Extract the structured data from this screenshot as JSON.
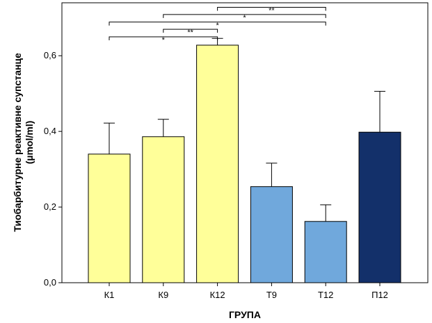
{
  "chart_data": {
    "type": "bar",
    "title": "",
    "xlabel": "ГРУПА",
    "ylabel_line1": "Тиобарбитурне реактивне супстанце",
    "ylabel_line2": "(µmol/ml)",
    "categories": [
      "К1",
      "К9",
      "К12",
      "Т9",
      "Т12",
      "П12"
    ],
    "values": [
      0.34,
      0.386,
      0.628,
      0.254,
      0.162,
      0.398
    ],
    "errors": [
      0.082,
      0.046,
      0.018,
      0.062,
      0.044,
      0.108
    ],
    "colors": [
      "#ffff99",
      "#ffff99",
      "#ffff99",
      "#70a8dc",
      "#70a8dc",
      "#13306a"
    ],
    "ylim": [
      0,
      0.74
    ],
    "yticks": [
      0.0,
      0.2,
      0.4,
      0.6
    ],
    "ytick_labels": [
      "0,0",
      "0,2",
      "0,4",
      "0,6"
    ],
    "grid": false,
    "significance": [
      {
        "from": 2,
        "to": 4,
        "label": "**",
        "level": 0.728
      },
      {
        "from": 1,
        "to": 4,
        "label": "*",
        "level": 0.709
      },
      {
        "from": 0,
        "to": 4,
        "label": "*",
        "level": 0.689
      },
      {
        "from": 1,
        "to": 2,
        "label": "**",
        "level": 0.67
      },
      {
        "from": 0,
        "to": 2,
        "label": "*",
        "level": 0.65
      }
    ]
  }
}
